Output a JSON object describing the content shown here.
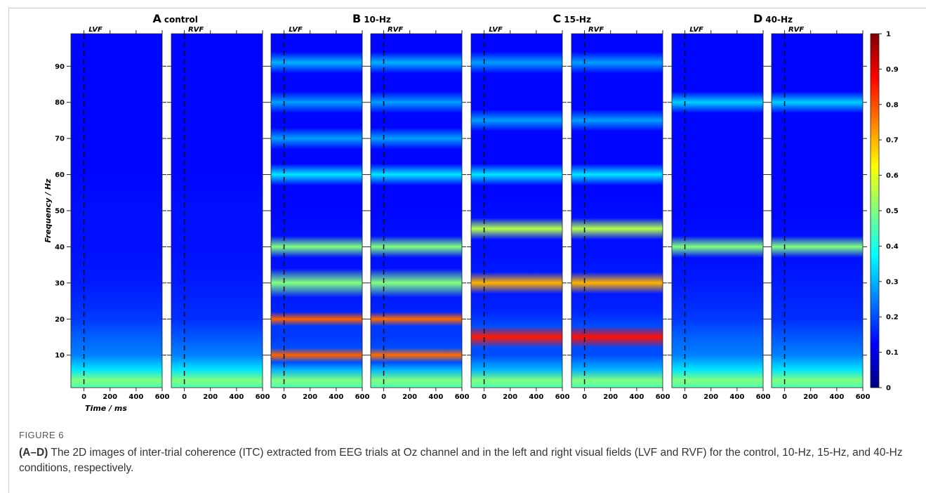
{
  "figure": {
    "label": "FIGURE 6",
    "caption_lead": "(A–D)",
    "caption": " The 2D images of inter-trial coherence (ITC) extracted from EEG trials at Oz channel and in the left and right visual fields (LVF and RVF) for the control, 10-Hz, 15-Hz, and 40-Hz conditions, respectively."
  },
  "panels": [
    {
      "letter": "A",
      "condition": "control"
    },
    {
      "letter": "B",
      "condition": "10-Hz"
    },
    {
      "letter": "C",
      "condition": "15-Hz"
    },
    {
      "letter": "D",
      "condition": "40-Hz"
    }
  ],
  "xlabel": "Time / ms",
  "ylabel": "Frequency / Hz",
  "colorbar": {
    "ylim": [
      0,
      1
    ],
    "yticks": [
      0,
      0.1,
      0.2,
      0.3,
      0.4,
      0.5,
      0.6,
      0.7,
      0.8,
      0.9,
      1
    ]
  },
  "chart_data": [
    {
      "type": "heatmap",
      "title": "LVF",
      "xlim": [
        -100,
        600
      ],
      "xticks": [
        0,
        200,
        400,
        600
      ],
      "ylim": [
        1,
        99
      ],
      "yticks": [
        10,
        20,
        30,
        40,
        50,
        60,
        70,
        80,
        90
      ],
      "y": [
        1,
        3,
        6,
        10,
        15,
        20,
        30,
        40,
        50,
        60,
        70,
        80,
        90,
        99
      ],
      "values": [
        0.45,
        0.5,
        0.35,
        0.25,
        0.22,
        0.18,
        0.15,
        0.14,
        0.14,
        0.13,
        0.13,
        0.13,
        0.13,
        0.13
      ]
    },
    {
      "type": "heatmap",
      "title": "RVF",
      "xlim": [
        -100,
        600
      ],
      "xticks": [
        0,
        200,
        400,
        600
      ],
      "ylim": [
        1,
        99
      ],
      "yticks": [
        10,
        20,
        30,
        40,
        50,
        60,
        70,
        80,
        90
      ],
      "y": [
        1,
        3,
        6,
        10,
        15,
        20,
        30,
        40,
        50,
        60,
        70,
        80,
        90,
        99
      ],
      "values": [
        0.45,
        0.5,
        0.35,
        0.25,
        0.21,
        0.17,
        0.15,
        0.14,
        0.14,
        0.13,
        0.13,
        0.13,
        0.13,
        0.13
      ]
    },
    {
      "type": "heatmap",
      "title": "LVF",
      "xlim": [
        -100,
        600
      ],
      "xticks": [
        0,
        200,
        400,
        600
      ],
      "ylim": [
        1,
        99
      ],
      "yticks": [
        10,
        20,
        30,
        40,
        50,
        60,
        70,
        80,
        90
      ],
      "y": [
        1,
        3,
        6,
        8,
        10,
        12,
        15,
        18,
        20,
        22,
        26,
        30,
        34,
        37,
        40,
        43,
        50,
        57,
        60,
        63,
        67,
        70,
        73,
        77,
        80,
        83,
        88,
        91,
        94,
        99
      ],
      "values": [
        0.45,
        0.5,
        0.3,
        0.2,
        0.78,
        0.2,
        0.18,
        0.18,
        0.78,
        0.16,
        0.15,
        0.5,
        0.14,
        0.14,
        0.5,
        0.14,
        0.13,
        0.13,
        0.35,
        0.13,
        0.13,
        0.28,
        0.13,
        0.13,
        0.28,
        0.13,
        0.13,
        0.3,
        0.13,
        0.13
      ]
    },
    {
      "type": "heatmap",
      "title": "RVF",
      "xlim": [
        -100,
        600
      ],
      "xticks": [
        0,
        200,
        400,
        600
      ],
      "ylim": [
        1,
        99
      ],
      "yticks": [
        10,
        20,
        30,
        40,
        50,
        60,
        70,
        80,
        90
      ],
      "y": [
        1,
        3,
        6,
        8,
        10,
        12,
        15,
        18,
        20,
        22,
        26,
        30,
        34,
        37,
        40,
        43,
        50,
        57,
        60,
        63,
        67,
        70,
        73,
        77,
        80,
        83,
        88,
        91,
        94,
        99
      ],
      "values": [
        0.45,
        0.5,
        0.3,
        0.2,
        0.77,
        0.2,
        0.18,
        0.18,
        0.77,
        0.16,
        0.15,
        0.5,
        0.14,
        0.14,
        0.5,
        0.14,
        0.13,
        0.13,
        0.35,
        0.13,
        0.13,
        0.28,
        0.13,
        0.13,
        0.28,
        0.13,
        0.13,
        0.3,
        0.13,
        0.13
      ]
    },
    {
      "type": "heatmap",
      "title": "LVF",
      "xlim": [
        -100,
        600
      ],
      "xticks": [
        0,
        200,
        400,
        600
      ],
      "ylim": [
        1,
        99
      ],
      "yticks": [
        10,
        20,
        30,
        40,
        50,
        60,
        70,
        80,
        90
      ],
      "y": [
        1,
        3,
        6,
        10,
        12,
        15,
        18,
        22,
        27,
        30,
        33,
        38,
        42,
        45,
        48,
        54,
        57,
        60,
        63,
        68,
        72,
        75,
        78,
        84,
        88,
        91,
        94,
        99
      ],
      "values": [
        0.45,
        0.5,
        0.3,
        0.2,
        0.2,
        0.85,
        0.2,
        0.16,
        0.15,
        0.7,
        0.15,
        0.14,
        0.14,
        0.55,
        0.14,
        0.13,
        0.13,
        0.35,
        0.13,
        0.13,
        0.13,
        0.28,
        0.13,
        0.13,
        0.13,
        0.28,
        0.13,
        0.13
      ]
    },
    {
      "type": "heatmap",
      "title": "RVF",
      "xlim": [
        -100,
        600
      ],
      "xticks": [
        0,
        200,
        400,
        600
      ],
      "ylim": [
        1,
        99
      ],
      "yticks": [
        10,
        20,
        30,
        40,
        50,
        60,
        70,
        80,
        90
      ],
      "y": [
        1,
        3,
        6,
        10,
        12,
        15,
        18,
        22,
        27,
        30,
        33,
        38,
        42,
        45,
        48,
        54,
        57,
        60,
        63,
        68,
        72,
        75,
        78,
        84,
        88,
        91,
        94,
        99
      ],
      "values": [
        0.45,
        0.5,
        0.3,
        0.2,
        0.2,
        0.86,
        0.2,
        0.16,
        0.15,
        0.7,
        0.15,
        0.14,
        0.14,
        0.55,
        0.14,
        0.13,
        0.13,
        0.35,
        0.13,
        0.13,
        0.13,
        0.28,
        0.13,
        0.13,
        0.13,
        0.28,
        0.13,
        0.13
      ]
    },
    {
      "type": "heatmap",
      "title": "LVF",
      "xlim": [
        -100,
        600
      ],
      "xticks": [
        0,
        200,
        400,
        600
      ],
      "ylim": [
        1,
        99
      ],
      "yticks": [
        10,
        20,
        30,
        40,
        50,
        60,
        70,
        80,
        90
      ],
      "y": [
        1,
        3,
        6,
        10,
        15,
        20,
        30,
        37,
        40,
        43,
        50,
        60,
        70,
        77,
        80,
        83,
        90,
        99
      ],
      "values": [
        0.45,
        0.5,
        0.35,
        0.25,
        0.22,
        0.18,
        0.15,
        0.14,
        0.5,
        0.14,
        0.13,
        0.13,
        0.13,
        0.13,
        0.33,
        0.13,
        0.13,
        0.13
      ]
    },
    {
      "type": "heatmap",
      "title": "RVF",
      "xlim": [
        -100,
        600
      ],
      "xticks": [
        0,
        200,
        400,
        600
      ],
      "ylim": [
        1,
        99
      ],
      "yticks": [
        10,
        20,
        30,
        40,
        50,
        60,
        70,
        80,
        90
      ],
      "y": [
        1,
        3,
        6,
        10,
        15,
        20,
        30,
        37,
        40,
        43,
        50,
        60,
        70,
        77,
        80,
        83,
        90,
        99
      ],
      "values": [
        0.45,
        0.5,
        0.35,
        0.25,
        0.21,
        0.17,
        0.15,
        0.14,
        0.5,
        0.14,
        0.13,
        0.13,
        0.13,
        0.13,
        0.33,
        0.13,
        0.13,
        0.13
      ]
    }
  ]
}
